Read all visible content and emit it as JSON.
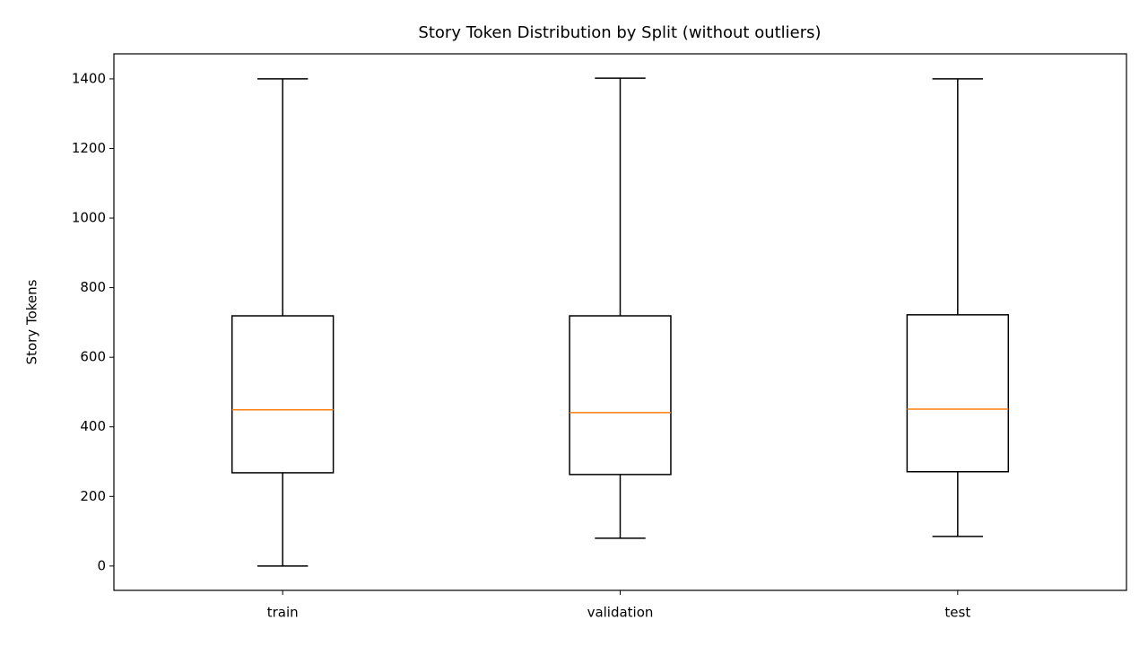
{
  "chart_data": {
    "type": "boxplot",
    "title": "Story Token Distribution by Split (without outliers)",
    "y_label": "Story Tokens",
    "categories": [
      "train",
      "validation",
      "test"
    ],
    "boxes": [
      {
        "whislo": 0,
        "q1": 268,
        "med": 449,
        "q3": 719,
        "whishi": 1400
      },
      {
        "whislo": 80,
        "q1": 263,
        "med": 441,
        "q3": 719,
        "whishi": 1402
      },
      {
        "whislo": 85,
        "q1": 271,
        "med": 451,
        "q3": 722,
        "whishi": 1400
      }
    ],
    "box_color": "#000000",
    "median_color": "#ff7f0e",
    "ylim": [
      -70,
      1472
    ],
    "yticks": [
      0,
      200,
      400,
      600,
      800,
      1000,
      1200,
      1400
    ],
    "grid": false
  }
}
